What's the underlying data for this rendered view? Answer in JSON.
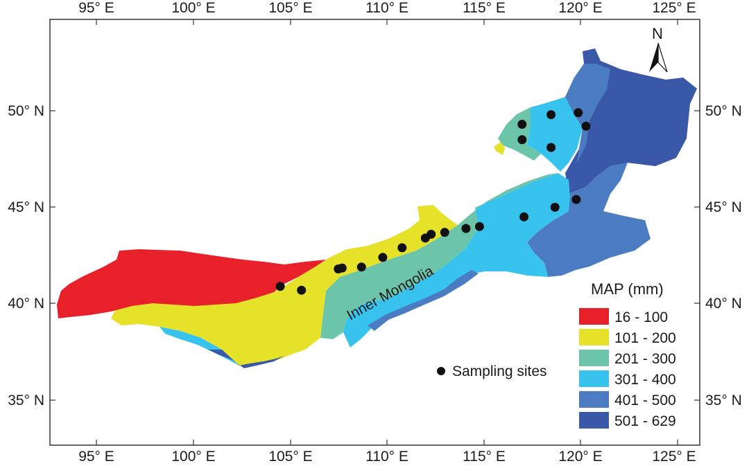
{
  "map": {
    "region_label": "Inner Mongolia",
    "north_label": "N",
    "x_ticks_top": [
      "95° E",
      "100° E",
      "105° E",
      "110° E",
      "115° E",
      "120° E",
      "125° E"
    ],
    "x_ticks_bottom": [
      "95° E",
      "100° E",
      "105° E",
      "110° E",
      "115° E",
      "120° E",
      "125° E"
    ],
    "y_ticks_left": [
      "50° N",
      "45° N",
      "40° N",
      "35° N"
    ],
    "y_ticks_right": [
      "50° N",
      "45° N",
      "40° N",
      "35° N"
    ],
    "lon_range": [
      92.5,
      126
    ],
    "lat_range": [
      32.5,
      55
    ],
    "zones": [
      {
        "label": "16 - 100",
        "color": "#e8202a"
      },
      {
        "label": "101 - 200",
        "color": "#e6e22a"
      },
      {
        "label": "201 - 300",
        "color": "#6cc5a8"
      },
      {
        "label": "301 - 400",
        "color": "#38c2ee"
      },
      {
        "label": "401 - 500",
        "color": "#4b7cc2"
      },
      {
        "label": "501 - 629",
        "color": "#3a58a8"
      }
    ],
    "sampling_sites": [
      {
        "lon": 104.5,
        "lat": 40.9
      },
      {
        "lon": 105.6,
        "lat": 40.7
      },
      {
        "lon": 107.5,
        "lat": 41.8
      },
      {
        "lon": 107.7,
        "lat": 41.85
      },
      {
        "lon": 108.7,
        "lat": 41.9
      },
      {
        "lon": 109.8,
        "lat": 42.4
      },
      {
        "lon": 110.8,
        "lat": 42.9
      },
      {
        "lon": 112.0,
        "lat": 43.4
      },
      {
        "lon": 112.3,
        "lat": 43.6
      },
      {
        "lon": 113.0,
        "lat": 43.7
      },
      {
        "lon": 114.1,
        "lat": 43.9
      },
      {
        "lon": 114.8,
        "lat": 44.0
      },
      {
        "lon": 117.1,
        "lat": 44.5
      },
      {
        "lon": 118.7,
        "lat": 45.0
      },
      {
        "lon": 119.8,
        "lat": 45.4
      },
      {
        "lon": 117.0,
        "lat": 48.5
      },
      {
        "lon": 117.0,
        "lat": 49.3
      },
      {
        "lon": 118.5,
        "lat": 49.8
      },
      {
        "lon": 119.9,
        "lat": 49.9
      },
      {
        "lon": 120.3,
        "lat": 49.2
      },
      {
        "lon": 118.5,
        "lat": 48.1
      }
    ]
  },
  "legend": {
    "title": "MAP (mm)",
    "sampling_label": "Sampling sites"
  },
  "colors": {
    "site_dot": "#111111",
    "frame": "#333333"
  }
}
